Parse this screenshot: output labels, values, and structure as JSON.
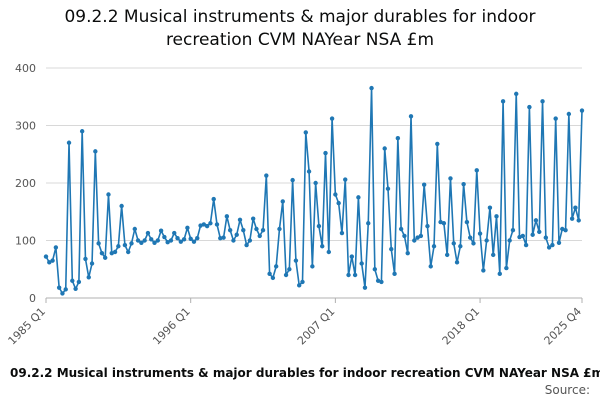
{
  "chart_data": {
    "type": "line",
    "title_lines": [
      "09.2.2 Musical instruments & major durables for indoor",
      "recreation CVM NAYear NSA £m"
    ],
    "footer_title": "09.2.2 Musical instruments & major durables for indoor recreation CVM NAYear NSA £m",
    "source_label": "Source:",
    "xlabel": "",
    "ylabel": "",
    "ylim": [
      0,
      400
    ],
    "yticks": [
      0,
      100,
      200,
      300,
      400
    ],
    "x_start": {
      "year": 1985,
      "quarter": 1
    },
    "xtick_labels": [
      {
        "label": "1985 Q1",
        "index": 0
      },
      {
        "label": "1996 Q1",
        "index": 44
      },
      {
        "label": "2007 Q1",
        "index": 88
      },
      {
        "label": "2018 Q1",
        "index": 132
      },
      {
        "label": "2025 Q4",
        "index": 163
      }
    ],
    "grid": true,
    "series_color": "#1f77b4",
    "series": [
      {
        "name": "09.2.2 Musical instruments & major durables for indoor recreation CVM NAYear NSA £m",
        "values": [
          72,
          62,
          65,
          88,
          18,
          8,
          15,
          270,
          30,
          16,
          28,
          290,
          68,
          36,
          60,
          255,
          95,
          78,
          70,
          180,
          78,
          80,
          90,
          160,
          92,
          80,
          95,
          120,
          100,
          96,
          100,
          113,
          102,
          96,
          100,
          117,
          106,
          97,
          100,
          113,
          104,
          98,
          102,
          122,
          103,
          98,
          104,
          126,
          128,
          125,
          130,
          172,
          128,
          104,
          105,
          142,
          118,
          100,
          110,
          136,
          118,
          92,
          100,
          138,
          120,
          108,
          118,
          213,
          42,
          35,
          55,
          120,
          168,
          40,
          50,
          205,
          65,
          22,
          28,
          288,
          220,
          55,
          200,
          125,
          90,
          252,
          80,
          312,
          180,
          165,
          113,
          206,
          40,
          72,
          40,
          175,
          60,
          18,
          130,
          365,
          50,
          30,
          28,
          260,
          190,
          85,
          42,
          278,
          120,
          108,
          78,
          316,
          100,
          105,
          108,
          197,
          125,
          55,
          90,
          268,
          132,
          130,
          75,
          208,
          95,
          62,
          90,
          198,
          132,
          105,
          95,
          222,
          112,
          48,
          100,
          157,
          75,
          142,
          42,
          342,
          52,
          100,
          118,
          355,
          106,
          108,
          92,
          332,
          110,
          135,
          115,
          342,
          105,
          88,
          92,
          312,
          96,
          120,
          118,
          320,
          138,
          157,
          135,
          326
        ]
      }
    ]
  }
}
